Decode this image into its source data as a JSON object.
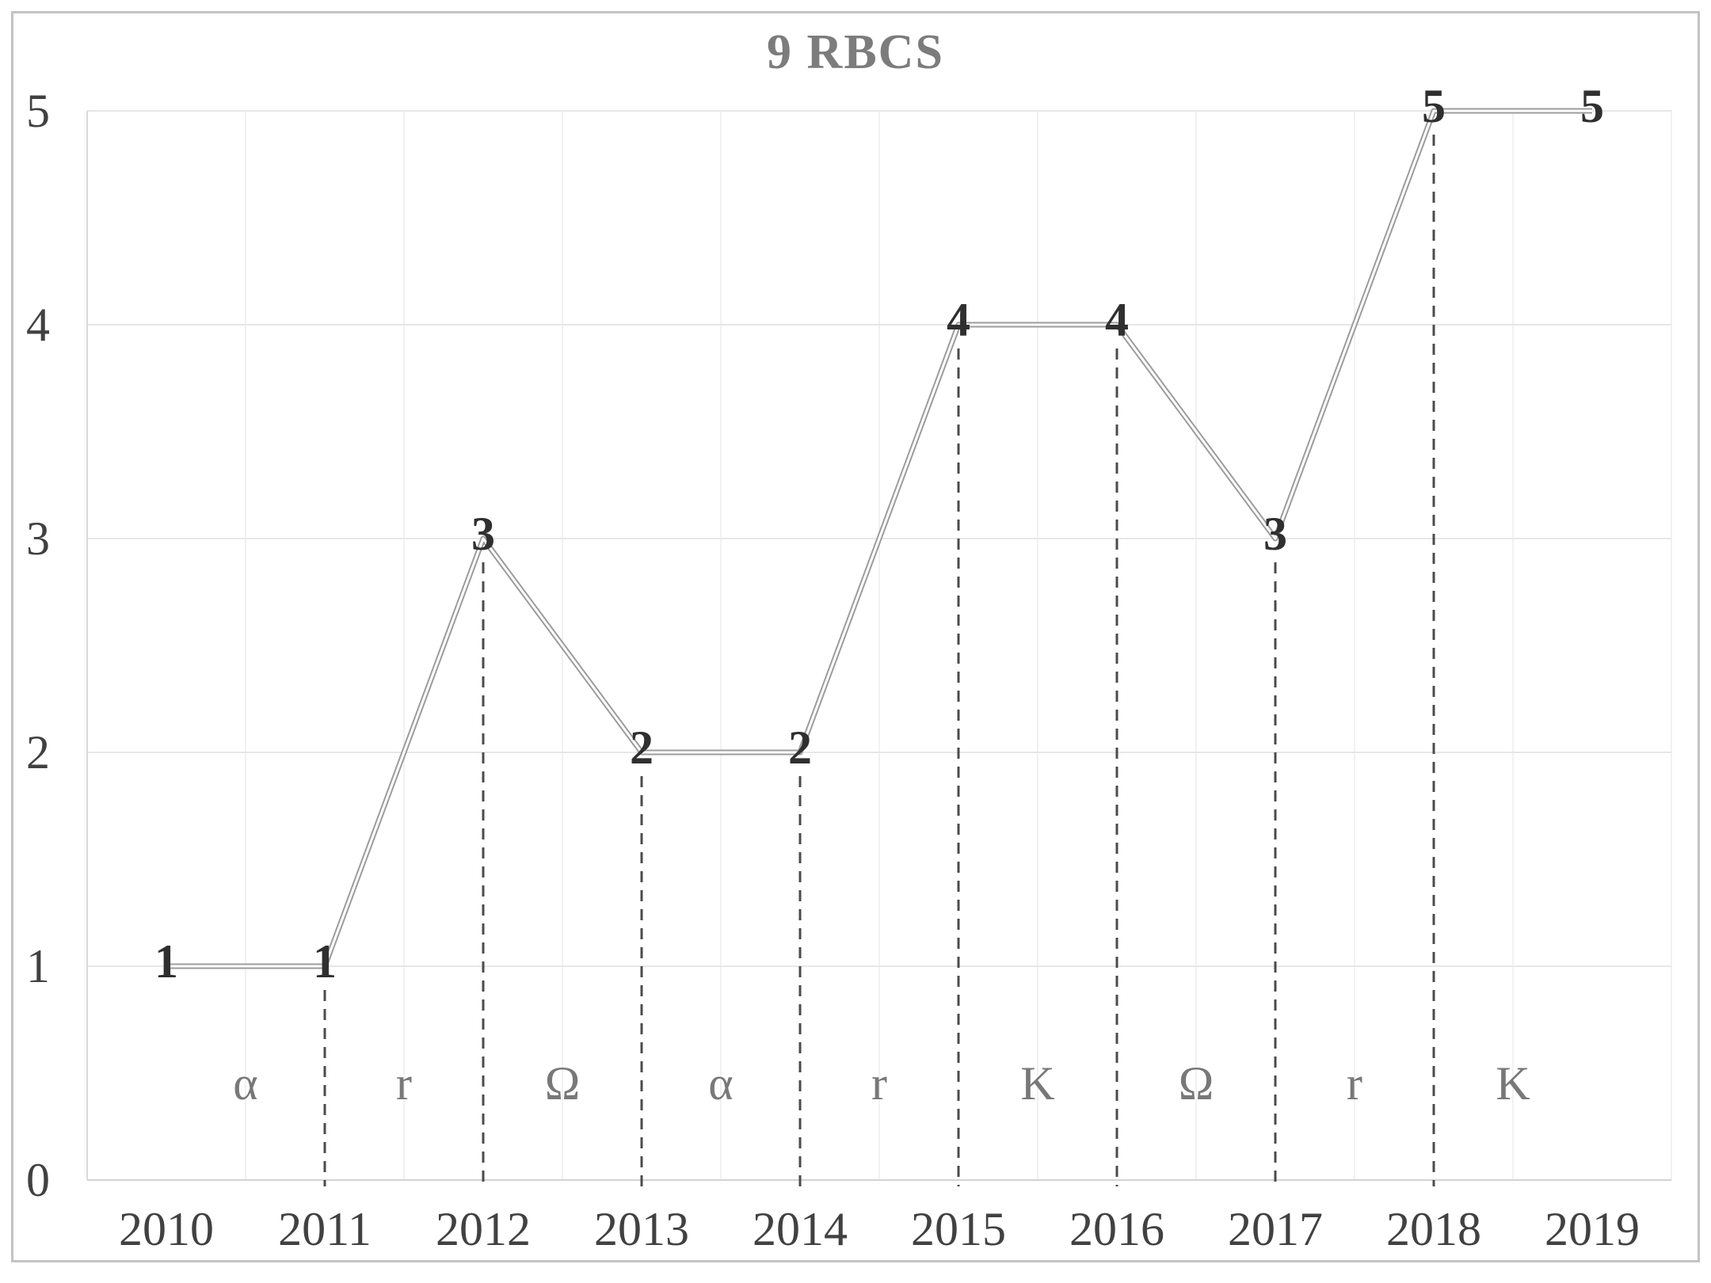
{
  "chart_data": {
    "type": "line",
    "title": "9 RBCS",
    "categories": [
      "2010",
      "2011",
      "2012",
      "2013",
      "2014",
      "2015",
      "2016",
      "2017",
      "2018",
      "2019"
    ],
    "values": [
      1,
      1,
      3,
      2,
      2,
      4,
      4,
      3,
      5,
      5
    ],
    "data_labels": [
      "1",
      "1",
      "3",
      "2",
      "2",
      "4",
      "4",
      "3",
      "5",
      "5"
    ],
    "phase_labels": [
      "α",
      "r",
      "Ω",
      "α",
      "r",
      "K",
      "Ω",
      "r",
      "K"
    ],
    "phase_label_position": "between consecutive x categories, near bottom of plot",
    "drop_lines_at": [
      "2011",
      "2012",
      "2013",
      "2014",
      "2015",
      "2016",
      "2017",
      "2018"
    ],
    "xlabel": "",
    "ylabel": "",
    "ylim": [
      0,
      5
    ],
    "yticks": [
      "0",
      "1",
      "2",
      "3",
      "4",
      "5"
    ],
    "grid": true,
    "legend": "none",
    "line_style": "double",
    "colors": {
      "line": "#9c9c9c",
      "line_inner": "#ffffff",
      "data_label": "#2f2f2f",
      "drop_line": "#4b4b4b",
      "phase_label": "#787878",
      "tick_label": "#414141",
      "title": "#7c7c7c",
      "h_grid": "#e7e7e7",
      "v_grid": "#f1f1f1",
      "axis": "#d3d3d3",
      "y_axis": "#dadada",
      "figure_border": "#c3c3c3",
      "background": "#ffffff"
    }
  }
}
